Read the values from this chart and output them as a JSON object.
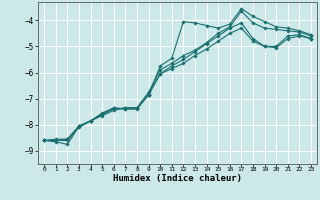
{
  "xlabel": "Humidex (Indice chaleur)",
  "bg_color": "#cce8e8",
  "grid_color": "#ffffff",
  "line_color": "#1a7070",
  "xlim": [
    -0.5,
    23.5
  ],
  "ylim": [
    -9.5,
    -3.3
  ],
  "x_ticks": [
    0,
    1,
    2,
    3,
    4,
    5,
    6,
    7,
    8,
    9,
    10,
    11,
    12,
    13,
    14,
    15,
    16,
    17,
    18,
    19,
    20,
    21,
    22,
    23
  ],
  "y_ticks": [
    -9,
    -8,
    -7,
    -6,
    -5,
    -4
  ],
  "lines": [
    {
      "x": [
        0,
        1,
        2,
        3,
        4,
        5,
        6,
        7,
        8,
        9,
        10,
        11,
        12,
        13,
        14,
        15,
        16,
        17,
        18,
        19,
        20,
        21,
        22,
        23
      ],
      "y": [
        -8.6,
        -8.65,
        -8.75,
        -8.05,
        -7.85,
        -7.65,
        -7.45,
        -7.35,
        -7.35,
        -6.85,
        -5.75,
        -5.45,
        -4.05,
        -4.1,
        -4.2,
        -4.3,
        -4.15,
        -3.55,
        -3.85,
        -4.05,
        -4.25,
        -4.3,
        -4.4,
        -4.55
      ]
    },
    {
      "x": [
        0,
        1,
        2,
        3,
        4,
        5,
        6,
        7,
        8,
        9,
        10,
        11,
        12,
        13,
        14,
        15,
        16,
        17,
        18,
        19,
        20,
        21,
        22,
        23
      ],
      "y": [
        -8.6,
        -8.55,
        -8.55,
        -8.05,
        -7.85,
        -7.6,
        -7.4,
        -7.35,
        -7.35,
        -6.85,
        -6.05,
        -5.75,
        -5.5,
        -5.2,
        -4.9,
        -4.6,
        -4.3,
        -4.1,
        -4.7,
        -5.0,
        -5.0,
        -4.6,
        -4.55,
        -4.7
      ]
    },
    {
      "x": [
        0,
        1,
        2,
        3,
        4,
        5,
        6,
        7,
        8,
        9,
        10,
        11,
        12,
        13,
        14,
        15,
        16,
        17,
        18,
        19,
        20,
        21,
        22,
        23
      ],
      "y": [
        -8.6,
        -8.6,
        -8.6,
        -8.1,
        -7.85,
        -7.6,
        -7.35,
        -7.4,
        -7.4,
        -6.85,
        -6.05,
        -5.85,
        -5.65,
        -5.35,
        -5.1,
        -4.8,
        -4.5,
        -4.3,
        -4.8,
        -5.0,
        -5.05,
        -4.7,
        -4.6,
        -4.7
      ]
    },
    {
      "x": [
        0,
        1,
        2,
        3,
        4,
        5,
        6,
        7,
        8,
        9,
        10,
        11,
        12,
        13,
        14,
        15,
        16,
        17,
        18,
        19,
        20,
        21,
        22,
        23
      ],
      "y": [
        -8.6,
        -8.6,
        -8.55,
        -8.05,
        -7.85,
        -7.55,
        -7.35,
        -7.4,
        -7.35,
        -6.75,
        -5.9,
        -5.65,
        -5.35,
        -5.15,
        -4.85,
        -4.5,
        -4.25,
        -3.65,
        -4.1,
        -4.3,
        -4.35,
        -4.4,
        -4.45,
        -4.6
      ]
    }
  ]
}
